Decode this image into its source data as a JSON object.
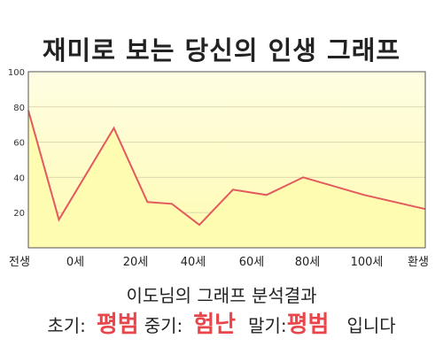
{
  "chart_data": {
    "type": "area",
    "title": "재미로 보는 당신의 인생 그래프",
    "x_labels": [
      "전생",
      "0세",
      "20세",
      "40세",
      "60세",
      "80세",
      "100세",
      "환생"
    ],
    "points": [
      {
        "age": -10,
        "value": 78
      },
      {
        "age": 0,
        "value": 16
      },
      {
        "age": 18,
        "value": 68
      },
      {
        "age": 29,
        "value": 26
      },
      {
        "age": 37,
        "value": 25
      },
      {
        "age": 46,
        "value": 13
      },
      {
        "age": 57,
        "value": 33
      },
      {
        "age": 68,
        "value": 30
      },
      {
        "age": 80,
        "value": 40
      },
      {
        "age": 100,
        "value": 30
      },
      {
        "age": 120,
        "value": 22
      }
    ],
    "ylim": [
      0,
      100
    ],
    "y_ticks": [
      20,
      40,
      60,
      80,
      100
    ],
    "xlim": [
      -10,
      120
    ],
    "grid": true,
    "colors": {
      "line": "#e35a5e",
      "fill_top": "#fefde4",
      "fill_bottom": "#fefcb0"
    }
  },
  "summary": {
    "heading": "이도님의 그래프 분석결과",
    "early_label": "초기:",
    "early_value": "평범",
    "middle_label": "중기:",
    "middle_value": "험난",
    "late_label": "말기:",
    "late_value": "평범",
    "ending": "입니다"
  }
}
